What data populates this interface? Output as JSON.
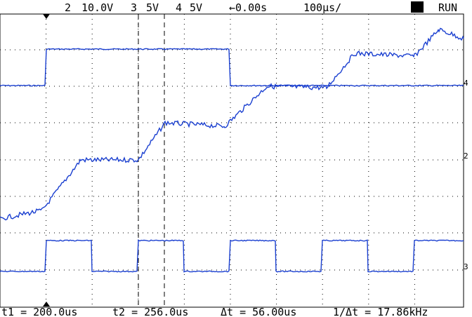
{
  "status": {
    "ch2": "2",
    "ch2_scale": "10.0V",
    "ch3": "3",
    "ch3_scale": "5V",
    "ch4": "4",
    "ch4_scale": "5V",
    "delay": "←0.00s",
    "timebase": "100µs/",
    "mode": "RUN"
  },
  "markers": {
    "ch4": "4",
    "ch2": "2",
    "ch3": "3"
  },
  "readout": {
    "t1": "t1 = 200.0us",
    "t2": "t2 = 256.0us",
    "dt": "Δt = 56.00us",
    "inv_dt": "1/Δt = 17.86kHz"
  }
}
